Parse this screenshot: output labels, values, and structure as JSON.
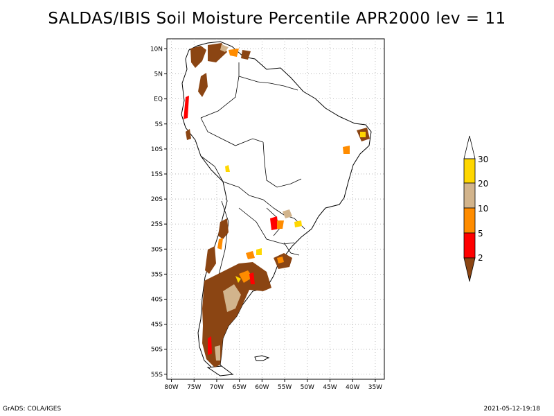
{
  "title": "SALDAS/IBIS Soil Moisture Percentile APR2000 lev = 11",
  "footer": {
    "left": "GrADS: COLA/IGES",
    "right": "2021-05-12-19:18"
  },
  "map": {
    "lon_range": [
      -81,
      -33
    ],
    "lat_range": [
      -56,
      12
    ],
    "lon_ticks": [
      {
        "value": -80,
        "label": "80W"
      },
      {
        "value": -75,
        "label": "75W"
      },
      {
        "value": -70,
        "label": "70W"
      },
      {
        "value": -65,
        "label": "65W"
      },
      {
        "value": -60,
        "label": "60W"
      },
      {
        "value": -55,
        "label": "55W"
      },
      {
        "value": -50,
        "label": "50W"
      },
      {
        "value": -45,
        "label": "45W"
      },
      {
        "value": -40,
        "label": "40W"
      },
      {
        "value": -35,
        "label": "35W"
      }
    ],
    "lat_ticks": [
      {
        "value": 10,
        "label": "10N"
      },
      {
        "value": 5,
        "label": "5N"
      },
      {
        "value": 0,
        "label": "EQ"
      },
      {
        "value": -5,
        "label": "5S"
      },
      {
        "value": -10,
        "label": "10S"
      },
      {
        "value": -15,
        "label": "15S"
      },
      {
        "value": -20,
        "label": "20S"
      },
      {
        "value": -25,
        "label": "25S"
      },
      {
        "value": -30,
        "label": "30S"
      },
      {
        "value": -35,
        "label": "35S"
      },
      {
        "value": -40,
        "label": "40S"
      },
      {
        "value": -45,
        "label": "45S"
      },
      {
        "value": -50,
        "label": "50S"
      },
      {
        "value": -55,
        "label": "55S"
      }
    ],
    "grid": true
  },
  "colorbar": {
    "levels": [
      "2",
      "5",
      "10",
      "20",
      "30"
    ],
    "colors": {
      "below_2": "#8b4513",
      "2_5": "#ff0000",
      "5_10": "#ff8c00",
      "10_20": "#d2b48c",
      "20_30": "#ffd700",
      "above_30": "#ffffff"
    }
  }
}
